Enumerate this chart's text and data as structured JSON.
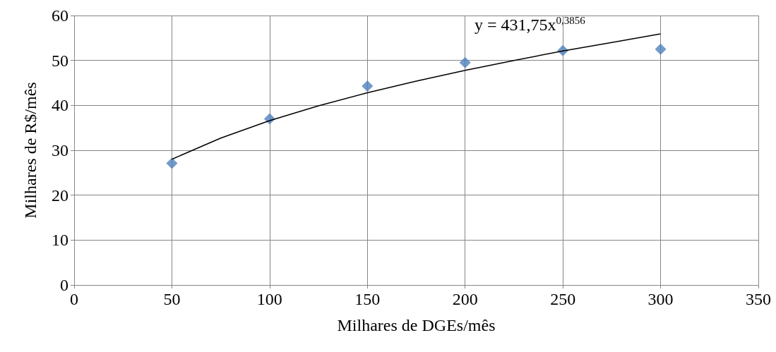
{
  "chart_data": {
    "type": "scatter",
    "xlabel": "Milhares de DGEs/mês",
    "ylabel": "Milhares de R$/mês",
    "series": [
      {
        "color": "#4f81bd",
        "marker": "diamond",
        "x": [
          50,
          100,
          150,
          200,
          250,
          300
        ],
        "values": [
          27.1,
          37,
          44.3,
          49.5,
          52.2,
          52.5
        ]
      },
      {
        "type": "line",
        "color": "#000000",
        "marker": "none",
        "x": [
          50,
          75,
          100,
          125,
          150,
          175,
          200,
          225,
          250,
          275,
          300
        ],
        "values": [
          28,
          32.7,
          36.6,
          39.9,
          42.8,
          45.4,
          47.8,
          50,
          52.1,
          54,
          55.9
        ]
      }
    ],
    "annotations": [
      "y = 431,75x$^{0,3856}$"
    ],
    "xlim": [
      0,
      350
    ],
    "xticks": [
      0,
      50,
      100,
      150,
      200,
      250,
      300,
      350
    ],
    "ylim": [
      0,
      60
    ],
    "yticks": [
      0,
      10,
      20,
      30,
      40,
      50,
      60
    ],
    "grid": true
  }
}
